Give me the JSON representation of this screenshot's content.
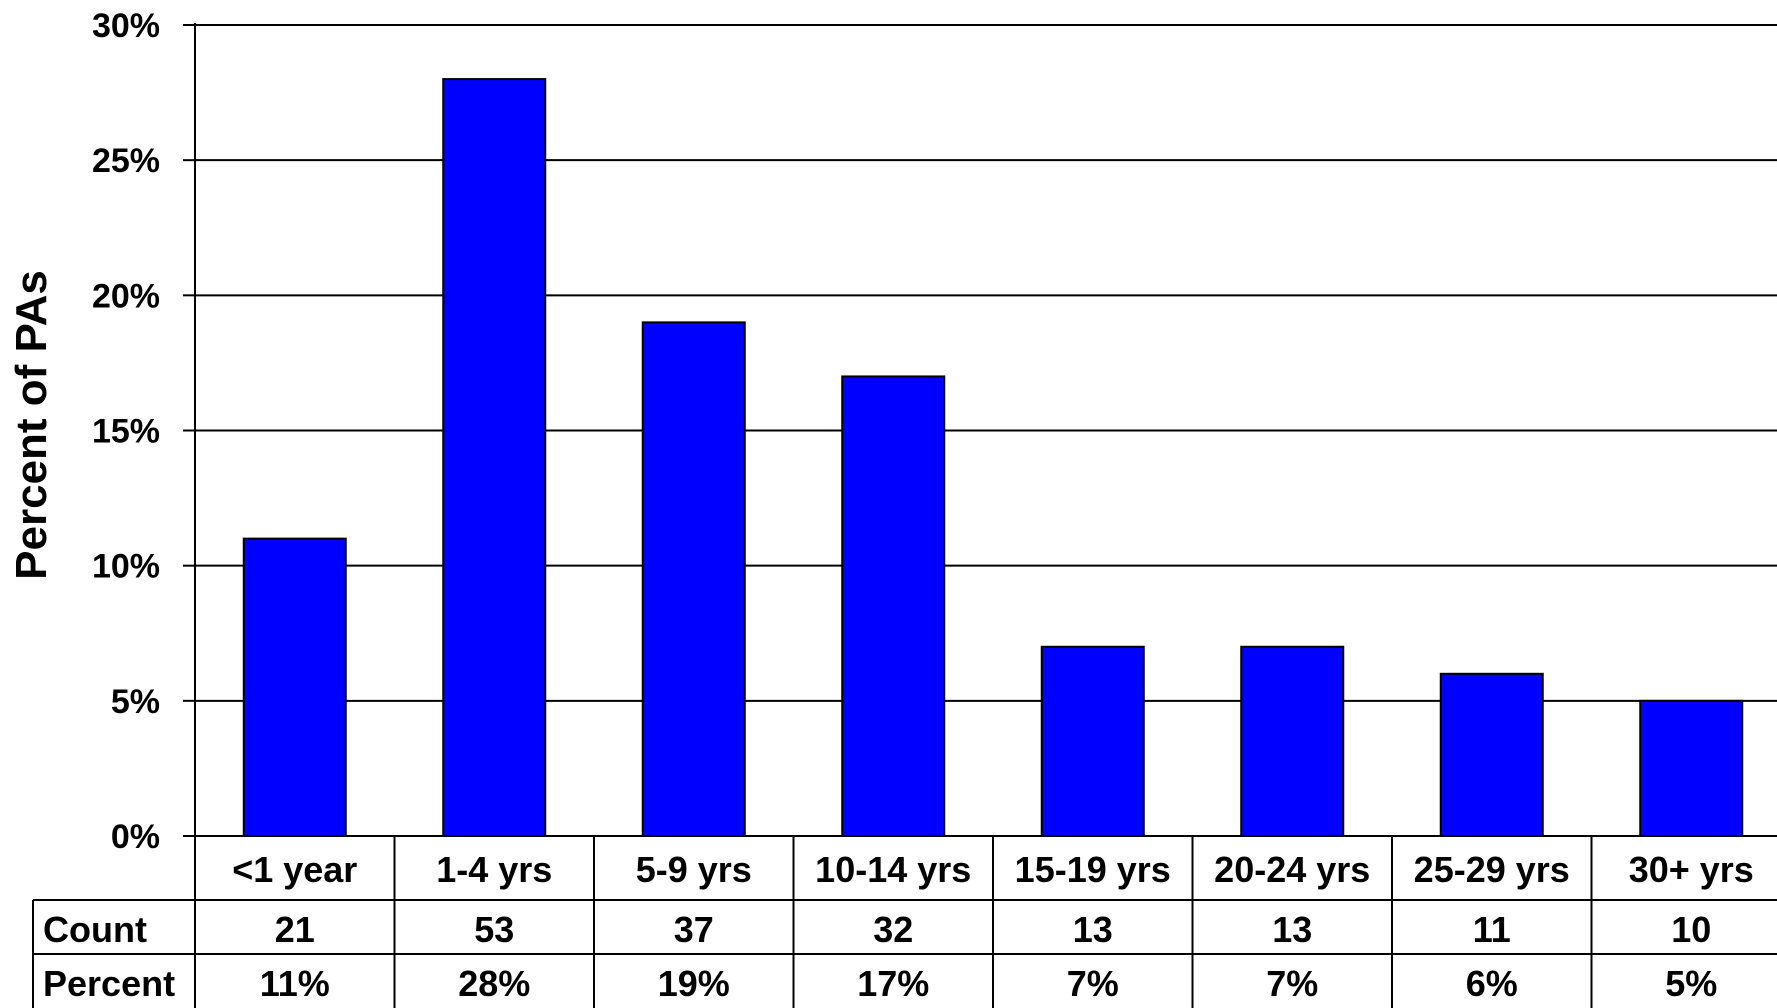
{
  "chart_data": {
    "type": "bar",
    "categories": [
      "<1 year",
      "1-4 yrs",
      "5-9 yrs",
      "10-14 yrs",
      "15-19 yrs",
      "20-24 yrs",
      "25-29 yrs",
      "30+ yrs"
    ],
    "values": [
      11,
      28,
      19,
      17,
      7,
      7,
      6,
      5
    ],
    "ylabel": "Percent of PAs",
    "xlabel": "",
    "ylim": [
      0,
      30
    ],
    "yticks": [
      "0%",
      "5%",
      "10%",
      "15%",
      "20%",
      "25%",
      "30%"
    ],
    "bar_color": "#0000ff",
    "grid": true,
    "legend": "none",
    "table": {
      "rows": [
        {
          "label": "Count",
          "cells": [
            "21",
            "53",
            "37",
            "32",
            "13",
            "13",
            "11",
            "10"
          ]
        },
        {
          "label": "Percent",
          "cells": [
            "11%",
            "28%",
            "19%",
            "17%",
            "7%",
            "7%",
            "6%",
            "5%"
          ]
        }
      ]
    }
  }
}
